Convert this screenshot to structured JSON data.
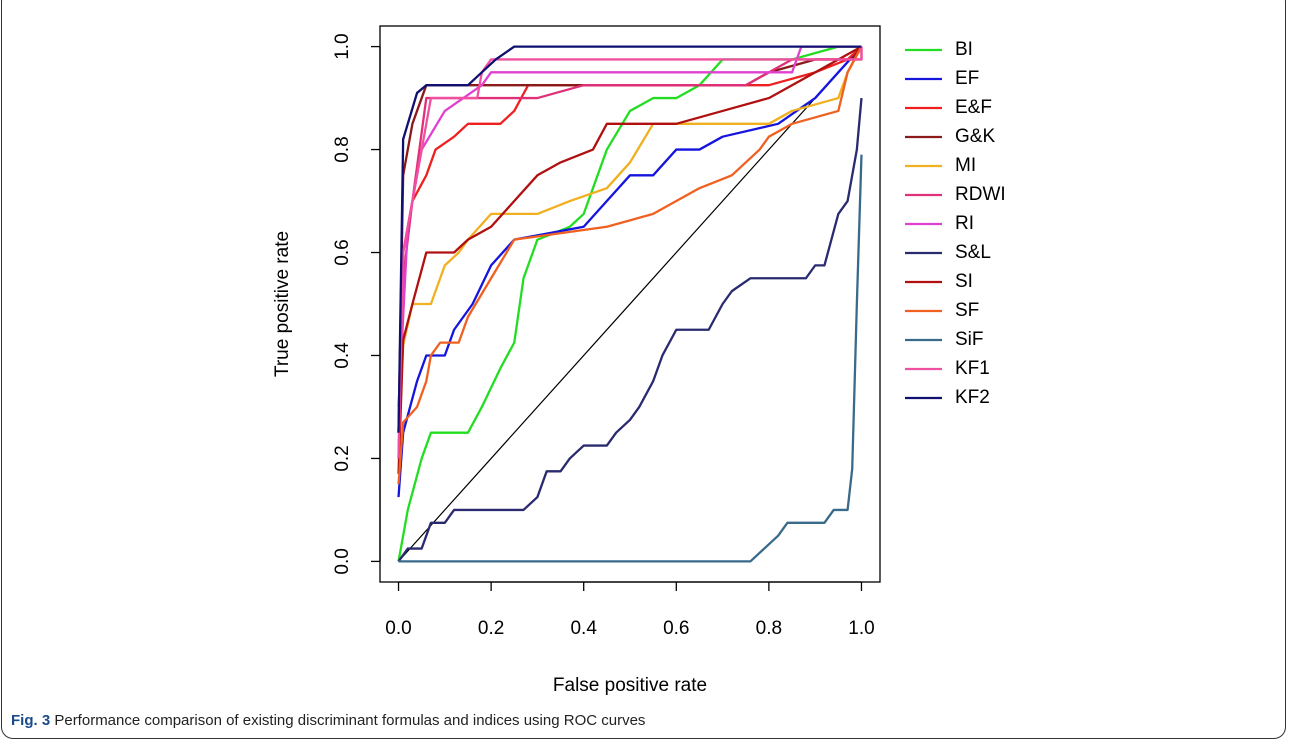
{
  "chart_data": {
    "type": "line",
    "xlabel": "False positive rate",
    "ylabel": "True positive rate",
    "xlim": [
      -0.04,
      1.04
    ],
    "ylim": [
      -0.04,
      1.04
    ],
    "xticks": [
      {
        "value": 0,
        "label": "0.0"
      },
      0.2,
      0.4,
      0.6,
      0.8,
      {
        "value": 1,
        "label": "1.0"
      }
    ],
    "yticks": [
      {
        "value": 0,
        "label": "0.0"
      },
      0.2,
      0.4,
      0.6,
      0.8,
      {
        "value": 1,
        "label": "1.0"
      }
    ],
    "diagonal": true,
    "legend": "right",
    "series": [
      {
        "name": "BI",
        "color": "#22dd22",
        "x": [
          0,
          0.02,
          0.05,
          0.07,
          0.15,
          0.18,
          0.22,
          0.25,
          0.27,
          0.3,
          0.37,
          0.4,
          0.45,
          0.5,
          0.55,
          0.6,
          0.65,
          0.7,
          0.85,
          0.95,
          1
        ],
        "values": [
          0,
          0.1,
          0.2,
          0.25,
          0.25,
          0.3,
          0.375,
          0.425,
          0.55,
          0.625,
          0.65,
          0.675,
          0.8,
          0.875,
          0.9,
          0.9,
          0.925,
          0.975,
          0.975,
          1,
          1
        ]
      },
      {
        "name": "EF",
        "color": "#1515dd",
        "x": [
          0,
          0.01,
          0.04,
          0.06,
          0.1,
          0.12,
          0.16,
          0.2,
          0.25,
          0.4,
          0.45,
          0.5,
          0.55,
          0.6,
          0.65,
          0.7,
          0.82,
          0.9,
          0.95,
          1
        ],
        "values": [
          0.125,
          0.25,
          0.35,
          0.4,
          0.4,
          0.45,
          0.5,
          0.575,
          0.625,
          0.65,
          0.7,
          0.75,
          0.75,
          0.8,
          0.8,
          0.825,
          0.85,
          0.9,
          0.95,
          1
        ]
      },
      {
        "name": "E&F",
        "color": "#ee2020",
        "x": [
          0,
          0.01,
          0.03,
          0.06,
          0.08,
          0.12,
          0.15,
          0.22,
          0.25,
          0.28,
          0.6,
          0.8,
          0.9,
          0.97,
          1
        ],
        "values": [
          0.2,
          0.6,
          0.7,
          0.75,
          0.8,
          0.825,
          0.85,
          0.85,
          0.875,
          0.925,
          0.925,
          0.925,
          0.95,
          0.975,
          1
        ]
      },
      {
        "name": "G&K",
        "color": "#8b1a1a",
        "x": [
          0,
          0.01,
          0.03,
          0.06,
          0.2,
          0.6,
          0.75,
          0.8,
          0.9,
          0.98,
          1
        ],
        "values": [
          0.25,
          0.75,
          0.85,
          0.925,
          0.925,
          0.925,
          0.925,
          0.95,
          0.975,
          0.975,
          1
        ]
      },
      {
        "name": "MI",
        "color": "#f0b020",
        "x": [
          0,
          0.01,
          0.03,
          0.07,
          0.1,
          0.13,
          0.15,
          0.2,
          0.3,
          0.37,
          0.45,
          0.5,
          0.55,
          0.8,
          0.85,
          0.95,
          0.97,
          1
        ],
        "values": [
          0.25,
          0.42,
          0.5,
          0.5,
          0.575,
          0.6,
          0.625,
          0.675,
          0.675,
          0.7,
          0.725,
          0.775,
          0.85,
          0.85,
          0.875,
          0.9,
          0.95,
          1
        ]
      },
      {
        "name": "RDWI",
        "color": "#e0307a",
        "x": [
          0,
          0.01,
          0.03,
          0.06,
          0.15,
          0.3,
          0.4,
          0.6,
          0.75,
          0.85,
          1,
          1
        ],
        "values": [
          0.25,
          0.55,
          0.7,
          0.9,
          0.9,
          0.9,
          0.925,
          0.925,
          0.925,
          0.975,
          0.975,
          1
        ]
      },
      {
        "name": "RI",
        "color": "#e040d0",
        "x": [
          0,
          0.02,
          0.05,
          0.1,
          0.18,
          0.2,
          0.5,
          0.85,
          0.87,
          1
        ],
        "values": [
          0.3,
          0.65,
          0.8,
          0.875,
          0.925,
          0.95,
          0.95,
          0.95,
          1,
          1
        ]
      },
      {
        "name": "S&L",
        "color": "#2a2a70",
        "x": [
          0,
          0.02,
          0.05,
          0.07,
          0.1,
          0.12,
          0.27,
          0.3,
          0.32,
          0.35,
          0.37,
          0.4,
          0.45,
          0.47,
          0.5,
          0.52,
          0.55,
          0.57,
          0.6,
          0.67,
          0.7,
          0.72,
          0.76,
          0.88,
          0.9,
          0.92,
          0.95,
          0.97,
          0.99,
          1
        ],
        "values": [
          0,
          0.025,
          0.025,
          0.075,
          0.075,
          0.1,
          0.1,
          0.125,
          0.175,
          0.175,
          0.2,
          0.225,
          0.225,
          0.25,
          0.275,
          0.3,
          0.35,
          0.4,
          0.45,
          0.45,
          0.5,
          0.525,
          0.55,
          0.55,
          0.575,
          0.575,
          0.675,
          0.7,
          0.8,
          0.9
        ]
      },
      {
        "name": "SI",
        "color": "#b01010",
        "x": [
          0,
          0.01,
          0.03,
          0.06,
          0.12,
          0.15,
          0.2,
          0.25,
          0.3,
          0.35,
          0.42,
          0.45,
          0.6,
          0.7,
          0.8,
          0.85,
          0.95,
          1
        ],
        "values": [
          0.17,
          0.43,
          0.5,
          0.6,
          0.6,
          0.625,
          0.65,
          0.7,
          0.75,
          0.775,
          0.8,
          0.85,
          0.85,
          0.875,
          0.9,
          0.925,
          0.975,
          1
        ]
      },
      {
        "name": "SF",
        "color": "#f06020",
        "x": [
          0,
          0.01,
          0.04,
          0.06,
          0.07,
          0.09,
          0.13,
          0.15,
          0.2,
          0.25,
          0.45,
          0.55,
          0.6,
          0.65,
          0.72,
          0.78,
          0.8,
          0.85,
          0.95,
          0.97,
          1
        ],
        "values": [
          0.15,
          0.27,
          0.3,
          0.35,
          0.4,
          0.425,
          0.425,
          0.475,
          0.55,
          0.625,
          0.65,
          0.675,
          0.7,
          0.725,
          0.75,
          0.8,
          0.825,
          0.85,
          0.875,
          0.95,
          1
        ]
      },
      {
        "name": "SiF",
        "color": "#3a6a8a",
        "x": [
          0,
          0.76,
          0.79,
          0.82,
          0.84,
          0.92,
          0.94,
          0.97,
          0.98,
          0.99,
          1
        ],
        "values": [
          0,
          0,
          0.025,
          0.05,
          0.075,
          0.075,
          0.1,
          0.1,
          0.18,
          0.5,
          0.79
        ]
      },
      {
        "name": "KF1",
        "color": "#f050a0",
        "x": [
          0,
          0.01,
          0.04,
          0.07,
          0.17,
          0.18,
          0.2,
          0.85,
          1,
          1
        ],
        "values": [
          0.2,
          0.6,
          0.75,
          0.9,
          0.9,
          0.95,
          0.975,
          0.975,
          0.975,
          1
        ]
      },
      {
        "name": "KF2",
        "color": "#101070",
        "x": [
          0,
          0.01,
          0.04,
          0.06,
          0.15,
          0.18,
          0.21,
          0.25,
          1
        ],
        "values": [
          0.25,
          0.82,
          0.91,
          0.925,
          0.925,
          0.95,
          0.975,
          1,
          1
        ]
      }
    ]
  },
  "caption": {
    "label": "Fig. 3",
    "text": "Performance comparison of existing discriminant formulas and indices using ROC curves"
  }
}
